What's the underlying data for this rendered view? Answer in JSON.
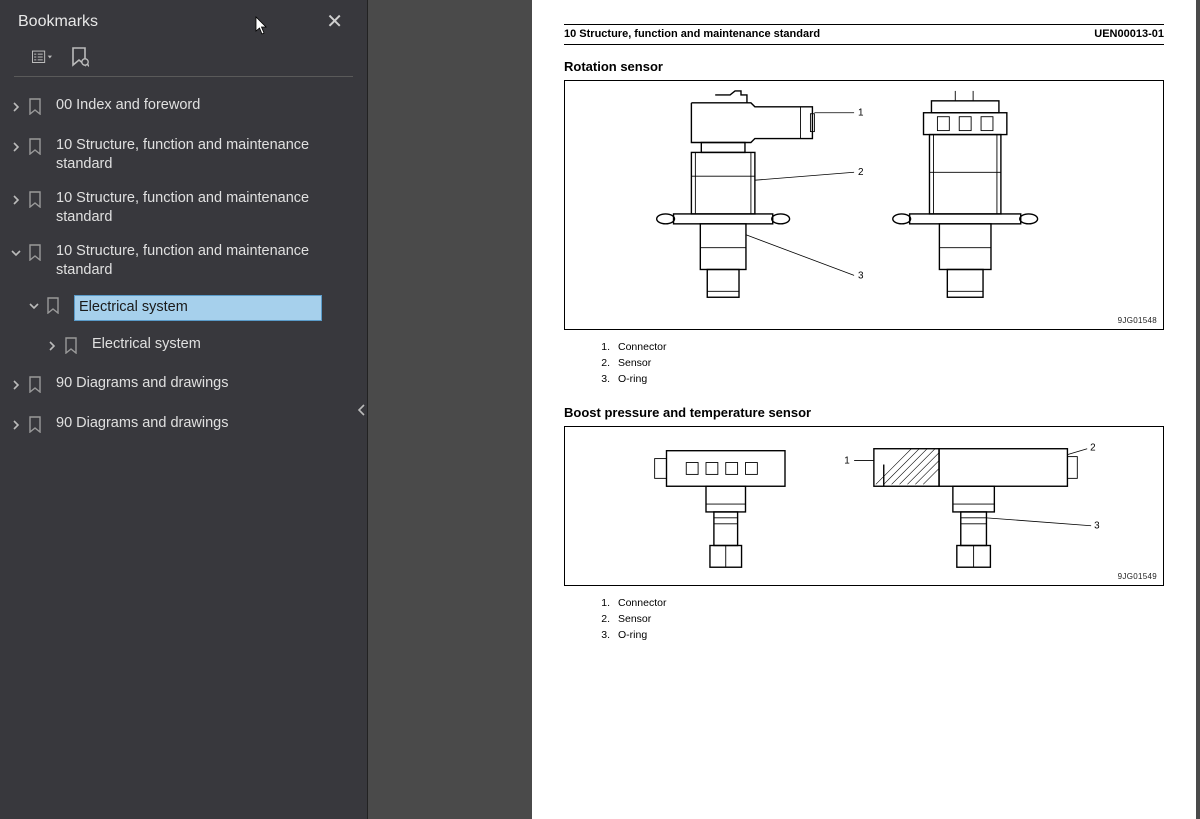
{
  "sidebar": {
    "title": "Bookmarks",
    "items": [
      {
        "label": "00 Index and foreword",
        "expanded": false,
        "indent": 0
      },
      {
        "label": "10 Structure, function and maintenance standard",
        "expanded": false,
        "indent": 0
      },
      {
        "label": "10 Structure, function and maintenance standard",
        "expanded": false,
        "indent": 0
      },
      {
        "label": "10 Structure, function and maintenance standard",
        "expanded": true,
        "indent": 0
      },
      {
        "label": "Electrical system",
        "expanded": true,
        "indent": 1,
        "selected": true
      },
      {
        "label": "Electrical system",
        "expanded": false,
        "indent": 2
      },
      {
        "label": "90 Diagrams and drawings",
        "expanded": false,
        "indent": 0
      },
      {
        "label": "90 Diagrams and drawings",
        "expanded": false,
        "indent": 0
      }
    ]
  },
  "document": {
    "header_left": "10 Structure, function and maintenance standard",
    "header_right": "UEN00013-01",
    "section1": {
      "title": "Rotation sensor",
      "fig_ref": "9JG01548",
      "callouts": [
        "1",
        "2",
        "3"
      ],
      "legend": [
        {
          "num": "1.",
          "text": "Connector"
        },
        {
          "num": "2.",
          "text": "Sensor"
        },
        {
          "num": "3.",
          "text": "O-ring"
        }
      ]
    },
    "section2": {
      "title": "Boost pressure and temperature sensor",
      "fig_ref": "9JG01549",
      "callouts": [
        "1",
        "2",
        "3"
      ],
      "legend": [
        {
          "num": "1.",
          "text": "Connector"
        },
        {
          "num": "2.",
          "text": "Sensor"
        },
        {
          "num": "3.",
          "text": "O-ring"
        }
      ]
    }
  },
  "colors": {
    "sidebar_bg": "#38383d",
    "page_bg": "#ffffff",
    "outer_bg": "#4a4a4a",
    "selection_bg": "#a6d0ec",
    "text_light": "#e0e0e0"
  }
}
